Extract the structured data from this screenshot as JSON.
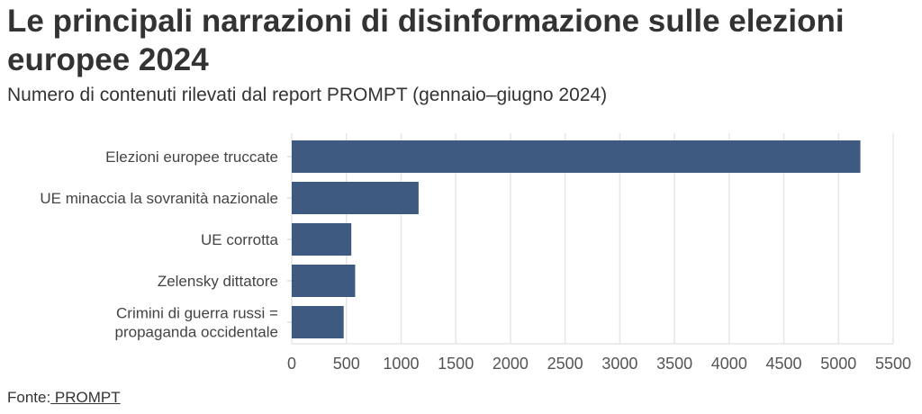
{
  "chart_data": {
    "type": "bar",
    "orientation": "horizontal",
    "title": "Le principali narrazioni di disinformazione sulle elezioni europee 2024",
    "subtitle": "Numero di contenuti rilevati dal report PROMPT (gennaio–giugno 2024)",
    "categories": [
      [
        "Elezioni europee truccate"
      ],
      [
        "UE minaccia la sovranità nazionale"
      ],
      [
        "UE corrotta"
      ],
      [
        "Zelensky dittatore"
      ],
      [
        "Crimini di guerra russi =",
        "propaganda occidentale"
      ]
    ],
    "values": [
      5200,
      1160,
      545,
      580,
      475
    ],
    "xlim": [
      0,
      5500
    ],
    "xticks": [
      0,
      500,
      1000,
      1500,
      2000,
      2500,
      3000,
      3500,
      4000,
      4500,
      5000,
      5500
    ],
    "grid": true,
    "bar_color": "#3f5a80",
    "xlabel": "",
    "ylabel": ""
  },
  "source": {
    "label": "Fonte:",
    "link": " PROMPT"
  }
}
